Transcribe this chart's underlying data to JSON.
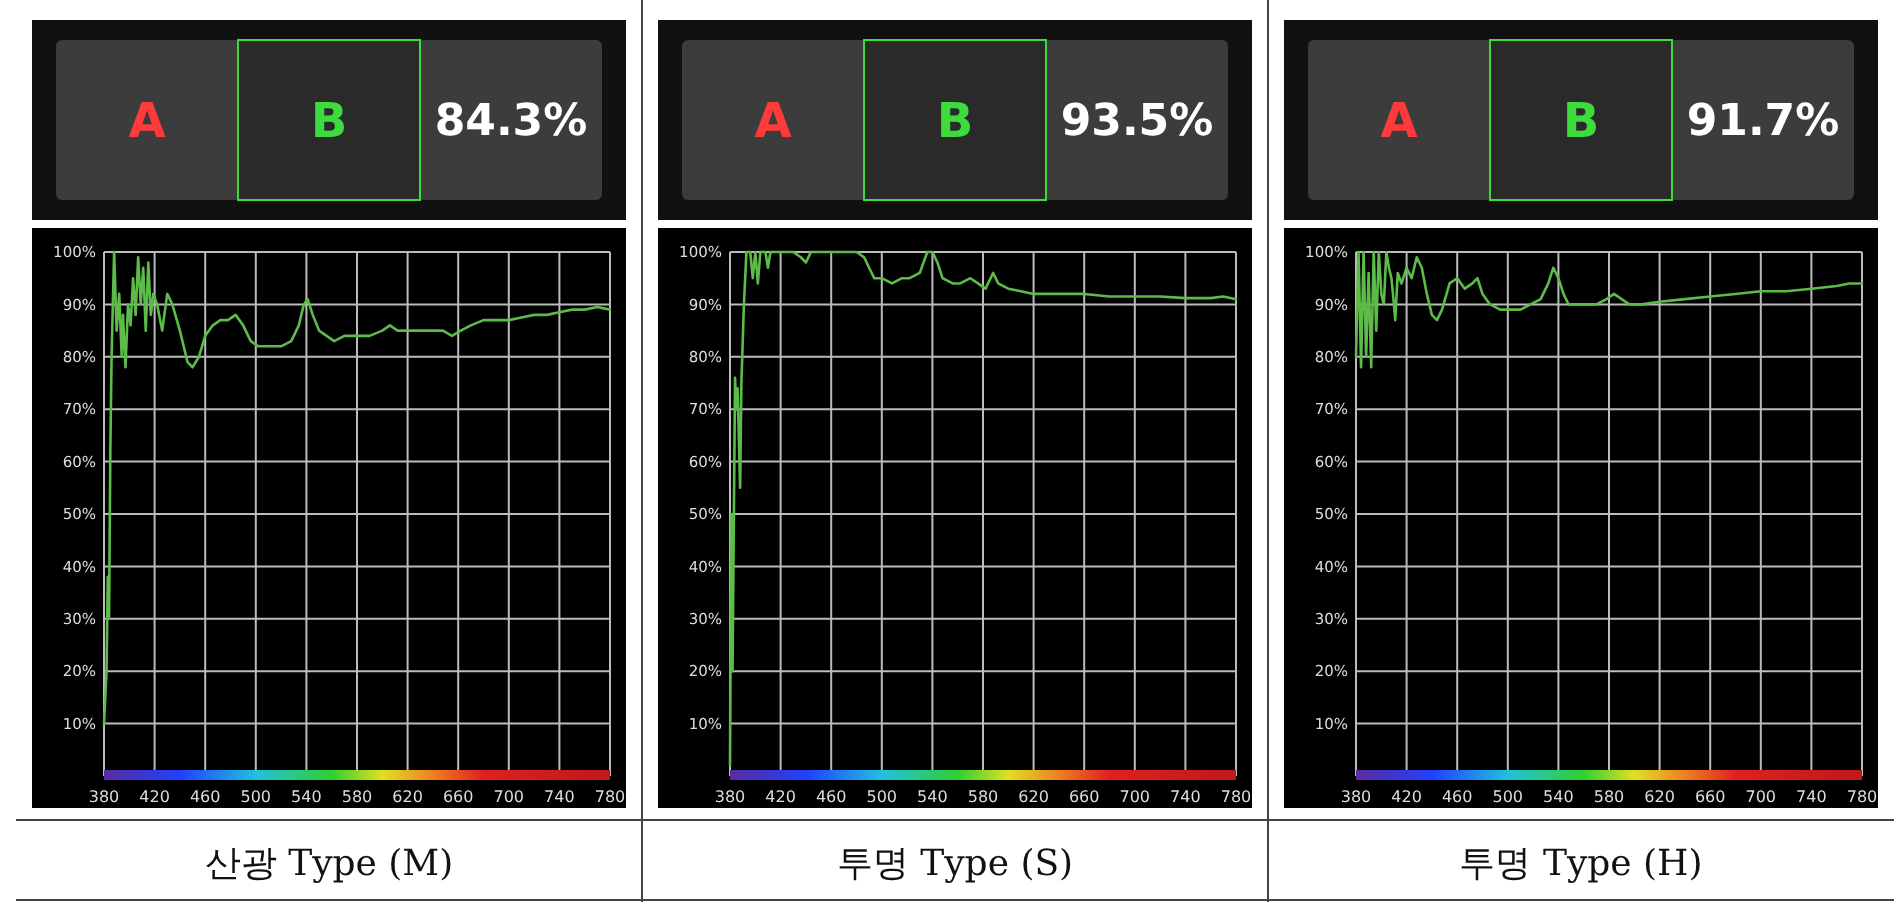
{
  "chart_data": [
    {
      "type": "line",
      "title": "산광 Type (M)",
      "annotations": [
        "A",
        "B",
        "84.3%"
      ],
      "x": [
        380,
        382,
        383,
        384,
        385,
        386,
        388,
        390,
        392,
        394,
        395,
        397,
        399,
        401,
        403,
        405,
        407,
        409,
        411,
        413,
        415,
        417,
        419,
        422,
        426,
        430,
        434,
        440,
        446,
        450,
        455,
        460,
        466,
        472,
        478,
        484,
        490,
        496,
        502,
        510,
        520,
        528,
        534,
        538,
        541,
        545,
        550,
        556,
        562,
        570,
        580,
        590,
        600,
        606,
        612,
        620,
        630,
        640,
        648,
        655,
        662,
        670,
        680,
        690,
        700,
        710,
        720,
        730,
        740,
        750,
        760,
        770,
        780
      ],
      "series": [
        {
          "color": "#5dbb4a",
          "values": [
            10,
            20,
            38,
            30,
            62,
            80,
            100,
            85,
            92,
            80,
            88,
            78,
            90,
            86,
            95,
            88,
            99,
            90,
            97,
            85,
            98,
            88,
            92,
            90,
            85,
            92,
            90,
            85,
            79,
            78,
            80,
            84,
            86,
            87,
            87,
            88,
            86,
            83,
            82,
            82,
            82,
            83,
            86,
            90,
            91,
            88,
            85,
            84,
            83,
            84,
            84,
            84,
            85,
            86,
            85,
            85,
            85,
            85,
            85,
            84,
            85,
            86,
            87,
            87,
            87,
            87.5,
            88,
            88,
            88.5,
            89,
            89,
            89.5,
            89
          ]
        }
      ],
      "xlim": [
        380,
        780
      ],
      "ylim": [
        0,
        100
      ],
      "xticks": [
        380,
        420,
        460,
        500,
        540,
        580,
        620,
        660,
        700,
        740,
        780
      ],
      "yticks": [
        {
          "value": 10,
          "label": "10%"
        },
        {
          "value": 20,
          "label": "20%"
        },
        {
          "value": 30,
          "label": "30%"
        },
        {
          "value": 40,
          "label": "40%"
        },
        {
          "value": 50,
          "label": "50%"
        },
        {
          "value": 60,
          "label": "60%"
        },
        {
          "value": 70,
          "label": "70%"
        },
        {
          "value": 80,
          "label": "80%"
        },
        {
          "value": 90,
          "label": "90%"
        },
        {
          "value": 100,
          "label": "100%"
        }
      ],
      "grid": true
    },
    {
      "type": "line",
      "title": "투명 Type (S)",
      "annotations": [
        "A",
        "B",
        "93.5%"
      ],
      "x": [
        380,
        381,
        382,
        384,
        385,
        386,
        388,
        389,
        391,
        393,
        396,
        398,
        400,
        402,
        404,
        408,
        410,
        412,
        420,
        430,
        436,
        440,
        444,
        450,
        460,
        470,
        480,
        486,
        490,
        494,
        500,
        508,
        516,
        522,
        530,
        536,
        540,
        544,
        548,
        556,
        562,
        570,
        576,
        582,
        586,
        588,
        592,
        600,
        610,
        620,
        640,
        660,
        680,
        700,
        720,
        740,
        760,
        770,
        780
      ],
      "series": [
        {
          "color": "#5dbb4a",
          "values": [
            2,
            50,
            20,
            76,
            70,
            74,
            55,
            75,
            90,
            100,
            100,
            95,
            100,
            94,
            100,
            100,
            97,
            100,
            100,
            100,
            99,
            98,
            100,
            100,
            100,
            100,
            100,
            99,
            97,
            95,
            95,
            94,
            95,
            95,
            96,
            100,
            100,
            98,
            95,
            94,
            94,
            95,
            94,
            93,
            95,
            96,
            94,
            93,
            92.5,
            92,
            92,
            92,
            91.5,
            91.5,
            91.5,
            91.2,
            91.2,
            91.5,
            91
          ]
        }
      ],
      "xlim": [
        380,
        780
      ],
      "ylim": [
        0,
        100
      ],
      "xticks": [
        380,
        420,
        460,
        500,
        540,
        580,
        620,
        660,
        700,
        740,
        780
      ],
      "yticks": [
        {
          "value": 10,
          "label": "10%"
        },
        {
          "value": 20,
          "label": "20%"
        },
        {
          "value": 30,
          "label": "30%"
        },
        {
          "value": 40,
          "label": "40%"
        },
        {
          "value": 50,
          "label": "50%"
        },
        {
          "value": 60,
          "label": "60%"
        },
        {
          "value": 70,
          "label": "70%"
        },
        {
          "value": 80,
          "label": "80%"
        },
        {
          "value": 90,
          "label": "90%"
        },
        {
          "value": 100,
          "label": "100%"
        }
      ],
      "grid": true
    },
    {
      "type": "line",
      "title": "투명 Type (H)",
      "annotations": [
        "A",
        "B",
        "91.7%"
      ],
      "x": [
        380,
        382,
        384,
        386,
        388,
        390,
        392,
        394,
        396,
        398,
        400,
        402,
        404,
        406,
        408,
        410,
        411,
        413,
        416,
        420,
        424,
        428,
        432,
        436,
        440,
        444,
        448,
        454,
        460,
        466,
        472,
        476,
        480,
        486,
        494,
        502,
        510,
        518,
        526,
        532,
        536,
        540,
        544,
        548,
        554,
        560,
        570,
        578,
        584,
        590,
        596,
        606,
        620,
        640,
        660,
        680,
        700,
        720,
        740,
        760,
        770,
        780
      ],
      "series": [
        {
          "color": "#5dbb4a",
          "values": [
            80,
            100,
            78,
            100,
            80,
            96,
            78,
            100,
            85,
            100,
            92,
            90,
            100,
            97,
            95,
            90,
            87,
            96,
            94,
            97,
            95,
            99,
            97,
            92,
            88,
            87,
            89,
            94,
            95,
            93,
            94,
            95,
            92,
            90,
            89,
            89,
            89,
            90,
            91,
            94,
            97,
            95,
            92,
            90,
            90,
            90,
            90,
            91,
            92,
            91,
            90,
            90,
            90.5,
            91,
            91.5,
            92,
            92.5,
            92.5,
            93,
            93.5,
            94,
            94
          ]
        }
      ],
      "xlim": [
        380,
        780
      ],
      "ylim": [
        0,
        100
      ],
      "xticks": [
        380,
        420,
        460,
        500,
        540,
        580,
        620,
        660,
        700,
        740,
        780
      ],
      "yticks": [
        {
          "value": 10,
          "label": "10%"
        },
        {
          "value": 20,
          "label": "20%"
        },
        {
          "value": 30,
          "label": "30%"
        },
        {
          "value": 40,
          "label": "40%"
        },
        {
          "value": 50,
          "label": "50%"
        },
        {
          "value": 60,
          "label": "60%"
        },
        {
          "value": 70,
          "label": "70%"
        },
        {
          "value": 80,
          "label": "80%"
        },
        {
          "value": 90,
          "label": "90%"
        },
        {
          "value": 100,
          "label": "100%"
        }
      ],
      "grid": true
    }
  ]
}
